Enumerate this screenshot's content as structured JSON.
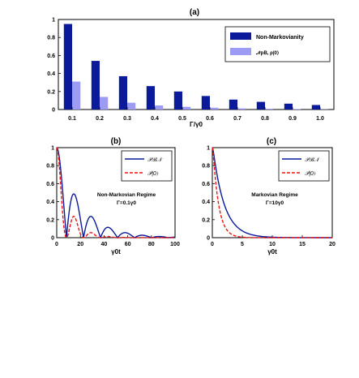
{
  "chart_data": [
    {
      "panel_label": "(a)",
      "type": "bar",
      "xlabel": "Γ/γ0",
      "ylabel": "",
      "ylim": [
        0,
        1
      ],
      "yticks": [
        "0",
        "0.2",
        "0.4",
        "0.6",
        "0.8",
        "1"
      ],
      "categories": [
        "0.1",
        "0.2",
        "0.3",
        "0.4",
        "0.5",
        "0.6",
        "0.7",
        "0.8",
        "0.9",
        "1.0"
      ],
      "series": [
        {
          "name": "Non-Markovianity",
          "color": "#0a1a9a",
          "values": [
            0.95,
            0.54,
            0.37,
            0.26,
            0.2,
            0.15,
            0.11,
            0.085,
            0.065,
            0.05
          ]
        },
        {
          "name": "𝒩ρB, ρ|0⟩",
          "color": "#9c9cf5",
          "values": [
            0.31,
            0.14,
            0.075,
            0.045,
            0.03,
            0.02,
            0.012,
            0.008,
            0.005,
            0.003
          ]
        }
      ],
      "legend": "top-right"
    },
    {
      "panel_label": "(b)",
      "type": "line",
      "xlabel": "γ0t",
      "ylabel": "",
      "xlim": [
        0,
        100
      ],
      "ylim": [
        0,
        1
      ],
      "xticks": [
        "0",
        "20",
        "40",
        "60",
        "80",
        "100"
      ],
      "yticks": [
        "0",
        "0.2",
        "0.4",
        "0.6",
        "0.8",
        "1"
      ],
      "annotation": [
        "Non-Markovian Regime",
        "Γ=0.1γ0"
      ],
      "gamma_over_gamma0": 0.1,
      "series": [
        {
          "name": "𝒫ℬ𝒩",
          "color": "#0a1a9a",
          "dash": "solid",
          "power": 1
        },
        {
          "name": "𝒫|0⟩",
          "color": "#ee1111",
          "dash": "dashed",
          "power": 2
        }
      ],
      "legend": "top-right"
    },
    {
      "panel_label": "(c)",
      "type": "line",
      "xlabel": "γ0t",
      "ylabel": "",
      "xlim": [
        0,
        20
      ],
      "ylim": [
        0,
        1
      ],
      "xticks": [
        "0",
        "5",
        "10",
        "15",
        "20"
      ],
      "yticks": [
        "0",
        "0.2",
        "0.4",
        "0.6",
        "0.8",
        "1"
      ],
      "annotation": [
        "Markovian Regime",
        "Γ=10γ0"
      ],
      "gamma_over_gamma0": 10,
      "series": [
        {
          "name": "𝒫ℬ𝒩",
          "color": "#0a1a9a",
          "dash": "solid",
          "power": 1
        },
        {
          "name": "𝒫|0⟩",
          "color": "#ee1111",
          "dash": "dashed",
          "power": 2
        }
      ],
      "legend": "top-right"
    }
  ]
}
